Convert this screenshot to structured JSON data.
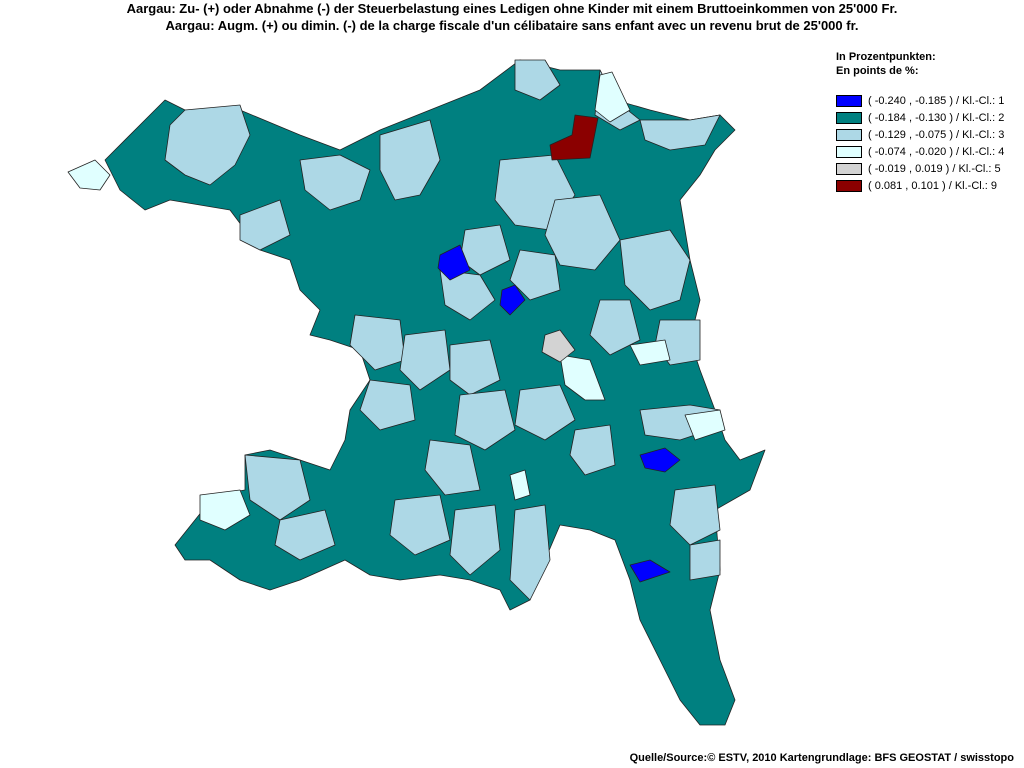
{
  "title": {
    "line1": "Aargau: Zu- (+) oder Abnahme (-) der Steuerbelastung eines Ledigen ohne Kinder mit einem Bruttoeinkommen von 25'000 Fr.",
    "line2": "Aargau: Augm. (+) ou dimin. (-) de la charge fiscale d'un célibataire sans enfant avec un revenu brut de 25'000 fr."
  },
  "legend": {
    "heading1": "In Prozentpunkten:",
    "heading2": "En points de %:",
    "items": [
      {
        "label": "( -0.240 , -0.185 ) / Kl.-Cl.: 1",
        "color": "#0000ff"
      },
      {
        "label": "( -0.184 , -0.130 ) / Kl.-Cl.: 2",
        "color": "#008080"
      },
      {
        "label": "( -0.129 , -0.075 ) / Kl.-Cl.: 3",
        "color": "#add8e6"
      },
      {
        "label": "( -0.074 , -0.020 ) / Kl.-Cl.: 4",
        "color": "#e0ffff"
      },
      {
        "label": "( -0.019 , 0.019 ) / Kl.-Cl.: 5",
        "color": "#d3d3d3"
      },
      {
        "label": "( 0.081 , 0.101 ) / Kl.-Cl.: 9",
        "color": "#8b0000"
      }
    ]
  },
  "source": "Quelle/Source:© ESTV, 2010 Kartengrundlage: BFS GEOSTAT / swisstopo"
}
